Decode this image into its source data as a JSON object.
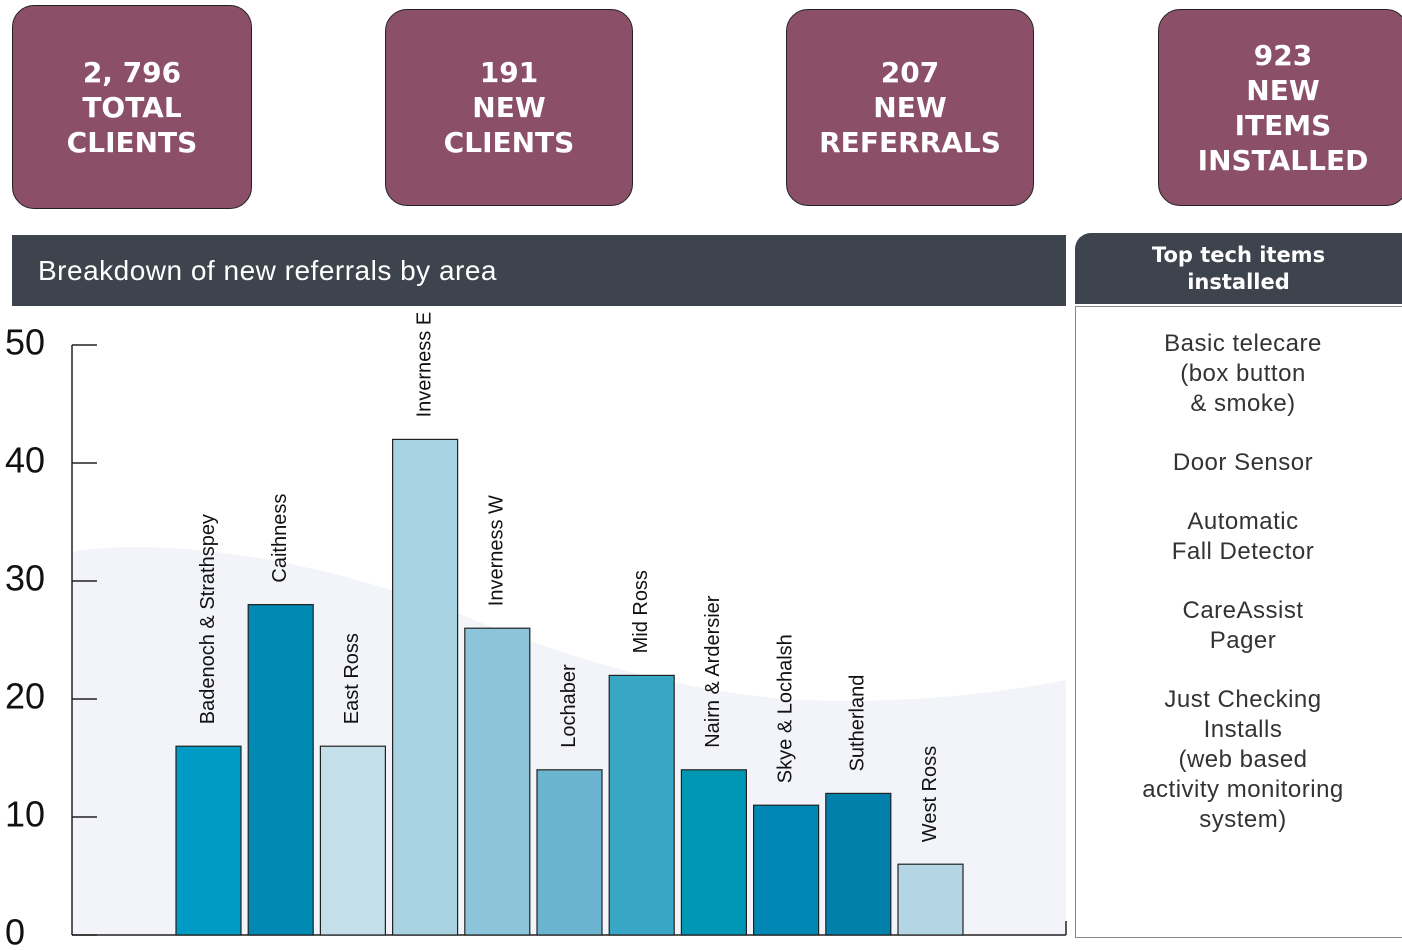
{
  "cards": [
    {
      "lines": [
        "2, 796",
        "TOTAL",
        "CLIENTS"
      ]
    },
    {
      "lines": [
        "191",
        "NEW",
        "CLIENTS"
      ]
    },
    {
      "lines": [
        "207",
        "NEW",
        "REFERRALS"
      ]
    },
    {
      "lines": [
        "923",
        "NEW",
        "ITEMS",
        "INSTALLED"
      ]
    }
  ],
  "chart_data": {
    "type": "bar",
    "title": "Breakdown of new referrals by area",
    "categories": [
      "Badenoch & Strathspey",
      "Caithness",
      "East Ross",
      "Inverness E",
      "Inverness W",
      "Lochaber",
      "Mid Ross",
      "Nairn & Ardersier",
      "Skye & Lochalsh",
      "Sutherland",
      "West Ross"
    ],
    "values": [
      16,
      28,
      16,
      42,
      26,
      14,
      22,
      14,
      11,
      12,
      6
    ],
    "colors": [
      "#009bc5",
      "#0089b3",
      "#c3dfe9",
      "#a8d3e3",
      "#8cc4d9",
      "#6ab4cf",
      "#3aa6c5",
      "#0097b5",
      "#0087b3",
      "#0080aa",
      "#b4d6e4"
    ],
    "ylim": [
      0,
      50
    ],
    "yticks": [
      0,
      10,
      20,
      30,
      40,
      50
    ]
  },
  "side_panel": {
    "title": "Top tech items installed",
    "items": [
      {
        "lines": [
          "Basic telecare",
          "(box button",
          "& smoke)"
        ]
      },
      {
        "lines": [
          "Door Sensor"
        ]
      },
      {
        "lines": [
          "Automatic",
          "Fall Detector"
        ]
      },
      {
        "lines": [
          "CareAssist",
          "Pager"
        ]
      },
      {
        "lines": [
          "Just Checking",
          "Installs",
          "(web based",
          "activity monitoring",
          "system)"
        ]
      }
    ]
  }
}
